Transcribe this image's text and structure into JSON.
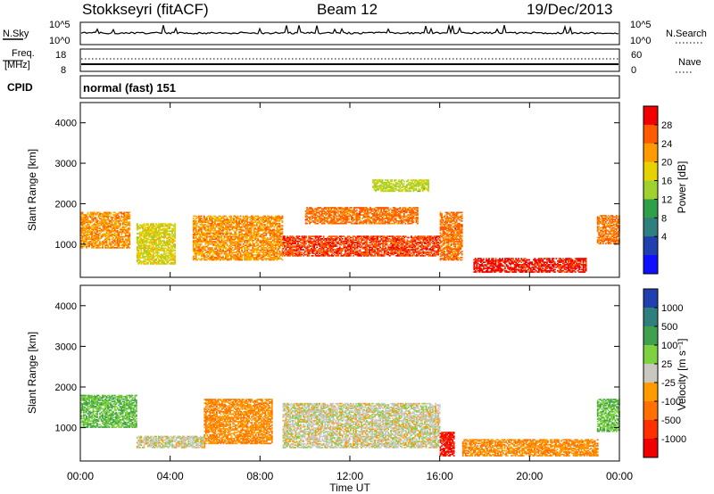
{
  "header": {
    "station": "Stokkseyri (fitACF)",
    "beam": "Beam 12",
    "date": "19/Dec/2013"
  },
  "summary_panels": {
    "nsky_label": "N.Sky",
    "nsky_top": "10^5",
    "nsky_bottom": "10^0",
    "nsky_right_top": "10^5",
    "nsky_right_bottom": "10^0",
    "nsearch_label": "N.Search",
    "freq_label": "Freq.",
    "freq_unit": "[MHz]",
    "freq_top": "18",
    "freq_bottom": "8",
    "nave_top": "60",
    "nave_bottom": "0",
    "nave_label": "Nave",
    "cpid_label": "CPID",
    "cpid_text": "normal (fast) 151"
  },
  "panels": {
    "power": {
      "ylabel": "Slant Range [km]",
      "yticks": [
        "4000",
        "3000",
        "2000",
        "1000"
      ],
      "cbar_label": "Power [dB]",
      "cbar_ticks": [
        "28",
        "24",
        "20",
        "16",
        "12",
        "8",
        "4"
      ],
      "cbar_colors": [
        "#f00000",
        "#ff5a00",
        "#ff9a00",
        "#e6d200",
        "#9fd22f",
        "#2f9f4a",
        "#2f7f7f",
        "#2040b0",
        "#1010ff"
      ]
    },
    "velocity": {
      "ylabel": "Slant Range [km]",
      "yticks": [
        "4000",
        "3000",
        "2000",
        "1000"
      ],
      "cbar_label": "Velocity [m s⁻¹]",
      "cbar_ticks": [
        "1000",
        "500",
        "100",
        "25",
        "-25",
        "-100",
        "-500",
        "-1000"
      ],
      "cbar_colors": [
        "#2040b0",
        "#2f7f7f",
        "#3fa04f",
        "#7fd23f",
        "#c8c8c0",
        "#ff9a00",
        "#ff7000",
        "#ff3000",
        "#f00000"
      ]
    }
  },
  "xaxis": {
    "ticks": [
      "00:00",
      "04:00",
      "08:00",
      "12:00",
      "16:00",
      "20:00",
      "00:00"
    ],
    "label": "Time UT"
  },
  "chart_data": [
    {
      "type": "heatmap",
      "title": "Power",
      "xlabel": "Time UT",
      "ylabel": "Slant Range [km]",
      "xlim": [
        0,
        24
      ],
      "ylim": [
        180,
        4500
      ],
      "colorbar_label": "Power [dB]",
      "colorbar_range": [
        0,
        30
      ],
      "regions": [
        {
          "t": [
            0.0,
            2.2
          ],
          "range": [
            900,
            1800
          ],
          "value": 22
        },
        {
          "t": [
            2.5,
            4.2
          ],
          "range": [
            500,
            1500
          ],
          "value": 18
        },
        {
          "t": [
            5.0,
            9.0
          ],
          "range": [
            600,
            1700
          ],
          "value": 22
        },
        {
          "t": [
            9.0,
            16.0
          ],
          "range": [
            700,
            1200
          ],
          "value": 26
        },
        {
          "t": [
            10.0,
            15.0
          ],
          "range": [
            1500,
            1900
          ],
          "value": 24
        },
        {
          "t": [
            13.0,
            15.5
          ],
          "range": [
            2300,
            2600
          ],
          "value": 16
        },
        {
          "t": [
            16.0,
            17.0
          ],
          "range": [
            600,
            1800
          ],
          "value": 24
        },
        {
          "t": [
            17.5,
            22.5
          ],
          "range": [
            300,
            650
          ],
          "value": 28
        },
        {
          "t": [
            23.0,
            24.0
          ],
          "range": [
            1000,
            1700
          ],
          "value": 24
        }
      ]
    },
    {
      "type": "heatmap",
      "title": "Velocity",
      "xlabel": "Time UT",
      "ylabel": "Slant Range [km]",
      "xlim": [
        0,
        24
      ],
      "ylim": [
        180,
        4500
      ],
      "colorbar_label": "Velocity [m s⁻¹]",
      "colorbar_range": [
        -1000,
        1000
      ],
      "regions": [
        {
          "t": [
            0.0,
            2.5
          ],
          "range": [
            1000,
            1800
          ],
          "value": 300
        },
        {
          "t": [
            2.5,
            5.5
          ],
          "range": [
            500,
            800
          ],
          "value": 0
        },
        {
          "t": [
            5.5,
            8.5
          ],
          "range": [
            600,
            1700
          ],
          "value": -300
        },
        {
          "t": [
            9.0,
            16.0
          ],
          "range": [
            500,
            1600
          ],
          "value": 0
        },
        {
          "t": [
            16.0,
            16.6
          ],
          "range": [
            300,
            900
          ],
          "value": -800
        },
        {
          "t": [
            17.0,
            23.0
          ],
          "range": [
            300,
            700
          ],
          "value": -300
        },
        {
          "t": [
            23.0,
            24.0
          ],
          "range": [
            900,
            1700
          ],
          "value": 300
        }
      ]
    }
  ]
}
